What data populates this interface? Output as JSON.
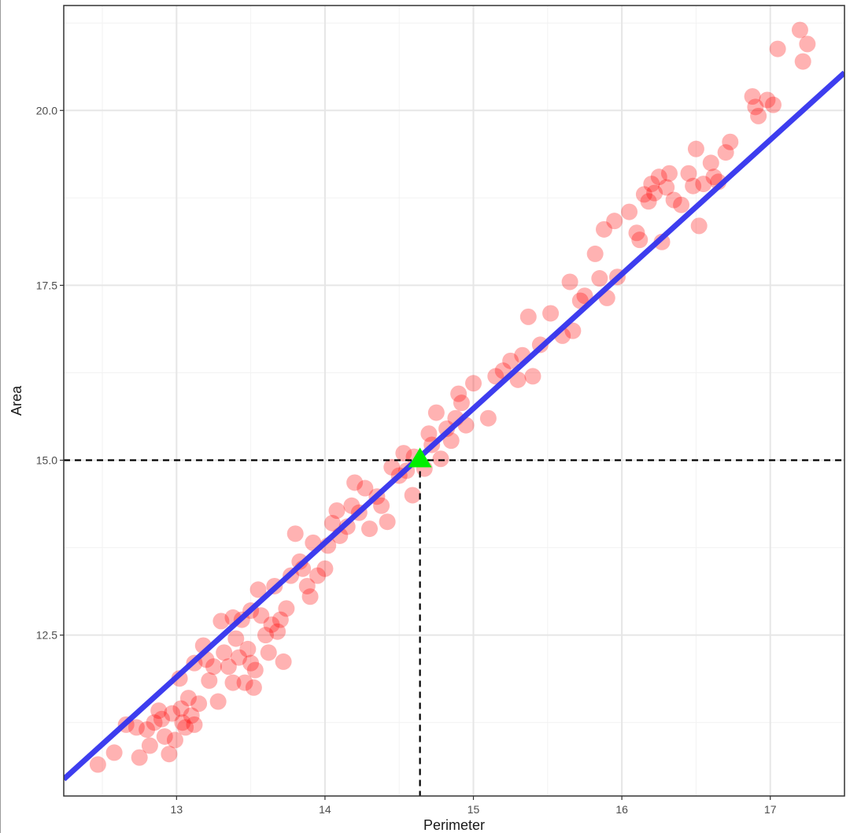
{
  "chart_data": {
    "type": "scatter",
    "title": "",
    "xlabel": "Perimeter",
    "ylabel": "Area",
    "xlim": [
      12.24,
      17.5
    ],
    "ylim": [
      10.2,
      21.5
    ],
    "xticks": [
      "13",
      "14",
      "15",
      "16",
      "17"
    ],
    "yticks": [
      "12.5",
      "15.0",
      "17.5",
      "20.0"
    ],
    "grid": true,
    "background": "#ffffff",
    "points_color": "#ff0000",
    "points_opacity": 0.3,
    "fit_line_color": "#3333ee",
    "highlight_color": "#00ee00",
    "fit_line": {
      "slope": 1.92,
      "intercept": -13.06
    },
    "highlight_point": {
      "x": 14.64,
      "y": 15.0
    },
    "reference_lines": {
      "x": 14.64,
      "y": 15.0,
      "style": "dashed",
      "color": "#000000"
    },
    "series": [
      {
        "points": [
          [
            12.47,
            10.65
          ],
          [
            12.58,
            10.82
          ],
          [
            12.66,
            11.22
          ],
          [
            12.73,
            11.18
          ],
          [
            12.75,
            10.75
          ],
          [
            12.8,
            11.15
          ],
          [
            12.82,
            10.92
          ],
          [
            12.85,
            11.25
          ],
          [
            12.88,
            11.42
          ],
          [
            12.9,
            11.3
          ],
          [
            12.92,
            11.05
          ],
          [
            12.95,
            10.8
          ],
          [
            12.97,
            11.38
          ],
          [
            12.99,
            11.0
          ],
          [
            13.02,
            11.88
          ],
          [
            13.03,
            11.45
          ],
          [
            13.04,
            11.25
          ],
          [
            13.06,
            11.18
          ],
          [
            13.08,
            11.6
          ],
          [
            13.1,
            11.35
          ],
          [
            13.12,
            11.22
          ],
          [
            13.12,
            12.1
          ],
          [
            13.15,
            11.52
          ],
          [
            13.18,
            12.35
          ],
          [
            13.2,
            12.15
          ],
          [
            13.22,
            11.85
          ],
          [
            13.25,
            12.05
          ],
          [
            13.28,
            11.55
          ],
          [
            13.3,
            12.7
          ],
          [
            13.32,
            12.25
          ],
          [
            13.35,
            12.05
          ],
          [
            13.38,
            11.82
          ],
          [
            13.38,
            12.75
          ],
          [
            13.4,
            12.45
          ],
          [
            13.42,
            12.18
          ],
          [
            13.44,
            12.72
          ],
          [
            13.46,
            11.82
          ],
          [
            13.48,
            12.3
          ],
          [
            13.5,
            12.85
          ],
          [
            13.5,
            12.1
          ],
          [
            13.52,
            11.75
          ],
          [
            13.53,
            12.0
          ],
          [
            13.55,
            13.15
          ],
          [
            13.57,
            12.78
          ],
          [
            13.6,
            12.5
          ],
          [
            13.62,
            12.25
          ],
          [
            13.64,
            12.65
          ],
          [
            13.66,
            13.2
          ],
          [
            13.68,
            12.55
          ],
          [
            13.7,
            12.72
          ],
          [
            13.72,
            12.12
          ],
          [
            13.74,
            12.88
          ],
          [
            13.77,
            13.35
          ],
          [
            13.8,
            13.95
          ],
          [
            13.83,
            13.55
          ],
          [
            13.85,
            13.45
          ],
          [
            13.88,
            13.2
          ],
          [
            13.9,
            13.05
          ],
          [
            13.92,
            13.82
          ],
          [
            13.95,
            13.35
          ],
          [
            14.0,
            13.45
          ],
          [
            14.02,
            13.78
          ],
          [
            14.05,
            14.1
          ],
          [
            14.08,
            14.28
          ],
          [
            14.1,
            13.92
          ],
          [
            14.15,
            14.05
          ],
          [
            14.18,
            14.35
          ],
          [
            14.2,
            14.68
          ],
          [
            14.23,
            14.25
          ],
          [
            14.27,
            14.6
          ],
          [
            14.3,
            14.02
          ],
          [
            14.35,
            14.48
          ],
          [
            14.38,
            14.35
          ],
          [
            14.42,
            14.12
          ],
          [
            14.45,
            14.9
          ],
          [
            14.5,
            14.78
          ],
          [
            14.53,
            15.1
          ],
          [
            14.55,
            14.85
          ],
          [
            14.59,
            14.5
          ],
          [
            14.6,
            15.05
          ],
          [
            14.67,
            14.88
          ],
          [
            14.7,
            15.38
          ],
          [
            14.72,
            15.22
          ],
          [
            14.75,
            15.68
          ],
          [
            14.78,
            15.02
          ],
          [
            14.82,
            15.45
          ],
          [
            14.85,
            15.28
          ],
          [
            14.88,
            15.6
          ],
          [
            14.9,
            15.95
          ],
          [
            14.92,
            15.82
          ],
          [
            14.95,
            15.5
          ],
          [
            15.0,
            16.1
          ],
          [
            15.1,
            15.6
          ],
          [
            15.15,
            16.2
          ],
          [
            15.2,
            16.28
          ],
          [
            15.25,
            16.42
          ],
          [
            15.3,
            16.15
          ],
          [
            15.33,
            16.5
          ],
          [
            15.37,
            17.05
          ],
          [
            15.4,
            16.2
          ],
          [
            15.45,
            16.65
          ],
          [
            15.52,
            17.1
          ],
          [
            15.6,
            16.78
          ],
          [
            15.65,
            17.55
          ],
          [
            15.67,
            16.85
          ],
          [
            15.72,
            17.28
          ],
          [
            15.75,
            17.35
          ],
          [
            15.82,
            17.95
          ],
          [
            15.85,
            17.6
          ],
          [
            15.88,
            18.3
          ],
          [
            15.9,
            17.32
          ],
          [
            15.95,
            18.42
          ],
          [
            15.97,
            17.62
          ],
          [
            16.05,
            18.55
          ],
          [
            16.1,
            18.25
          ],
          [
            16.12,
            18.15
          ],
          [
            16.15,
            18.8
          ],
          [
            16.18,
            18.7
          ],
          [
            16.2,
            18.95
          ],
          [
            16.22,
            18.82
          ],
          [
            16.25,
            19.05
          ],
          [
            16.27,
            18.12
          ],
          [
            16.3,
            18.9
          ],
          [
            16.32,
            19.1
          ],
          [
            16.35,
            18.72
          ],
          [
            16.4,
            18.65
          ],
          [
            16.45,
            19.1
          ],
          [
            16.48,
            18.92
          ],
          [
            16.5,
            19.45
          ],
          [
            16.52,
            18.35
          ],
          [
            16.55,
            18.95
          ],
          [
            16.6,
            19.25
          ],
          [
            16.62,
            19.05
          ],
          [
            16.65,
            18.98
          ],
          [
            16.7,
            19.4
          ],
          [
            16.73,
            19.55
          ],
          [
            16.88,
            20.2
          ],
          [
            16.9,
            20.05
          ],
          [
            16.92,
            19.92
          ],
          [
            16.98,
            20.15
          ],
          [
            17.02,
            20.08
          ],
          [
            17.05,
            20.88
          ],
          [
            17.2,
            21.15
          ],
          [
            17.22,
            20.7
          ],
          [
            17.25,
            20.95
          ]
        ]
      }
    ]
  }
}
